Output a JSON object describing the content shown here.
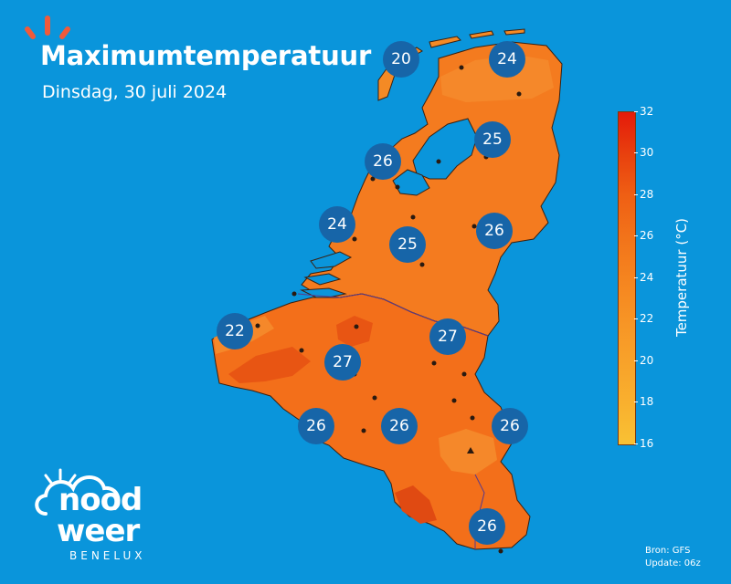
{
  "header": {
    "title": "Maximumtemperatuur",
    "subtitle": "Dinsdag, 30 juli 2024"
  },
  "colorbar": {
    "label": "Temperatuur (°C)",
    "ticks": [
      "32",
      "30",
      "28",
      "26",
      "24",
      "22",
      "20",
      "18",
      "16"
    ]
  },
  "source": {
    "line1": "Bron: GFS",
    "line2": "Update: 06z"
  },
  "logo": {
    "line1": "nood",
    "line2": "weer",
    "line3": "BENELUX"
  },
  "colors": {
    "sea": "#0a95db",
    "badge": "#1765a8",
    "land_base": "#f47b1f"
  },
  "badges": [
    "20",
    "24",
    "25",
    "26",
    "24",
    "26",
    "25",
    "22",
    "27",
    "27",
    "26",
    "26",
    "26",
    "26"
  ]
}
